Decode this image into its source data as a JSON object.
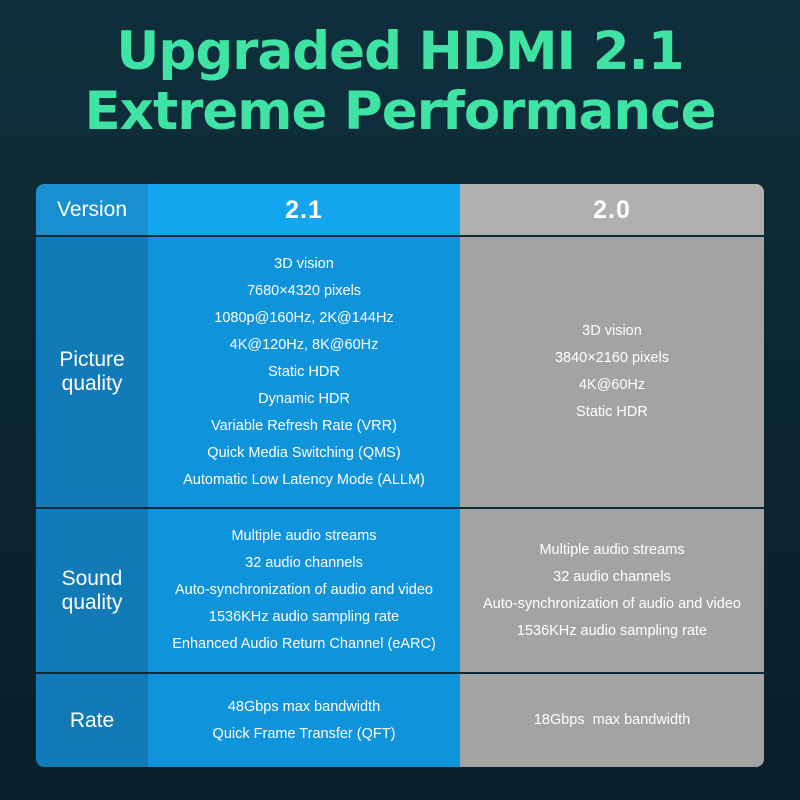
{
  "title": {
    "line1": "Upgraded HDMI 2.1",
    "line2": "Extreme Performance"
  },
  "table": {
    "header": {
      "label": "Version",
      "a": "2.1",
      "b": "2.0"
    },
    "rows": [
      {
        "label1": "Picture",
        "label2": "quality",
        "a": [
          "3D vision",
          "7680×4320 pixels",
          "1080p@160Hz, 2K@144Hz",
          "4K@120Hz, 8K@60Hz",
          "Static HDR",
          "Dynamic HDR",
          "Variable Refresh Rate (VRR)",
          "Quick Media Switching (QMS)",
          "Automatic Low Latency Mode (ALLM)"
        ],
        "b": [
          "3D vision",
          "3840×2160 pixels",
          "4K@60Hz",
          "Static HDR"
        ]
      },
      {
        "label1": "Sound",
        "label2": "quality",
        "a": [
          "Multiple audio streams",
          "32 audio channels",
          "Auto-synchronization of audio and video",
          "1536KHz audio sampling rate",
          "Enhanced Audio Return Channel (eARC)"
        ],
        "b": [
          "Multiple audio streams",
          "32 audio channels",
          "Auto-synchronization of audio and video",
          "1536KHz audio sampling rate"
        ]
      },
      {
        "label1": "Rate",
        "a": [
          "48Gbps max bandwidth",
          "Quick Frame Transfer (QFT)"
        ],
        "b": [
          "18Gbps  max bandwidth"
        ]
      }
    ]
  }
}
